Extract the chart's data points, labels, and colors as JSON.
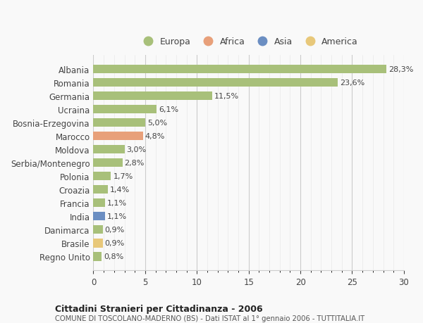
{
  "countries": [
    "Albania",
    "Romania",
    "Germania",
    "Ucraina",
    "Bosnia-Erzegovina",
    "Marocco",
    "Moldova",
    "Serbia/Montenegro",
    "Polonia",
    "Croazia",
    "Francia",
    "India",
    "Danimarca",
    "Brasile",
    "Regno Unito"
  ],
  "values": [
    28.3,
    23.6,
    11.5,
    6.1,
    5.0,
    4.8,
    3.0,
    2.8,
    1.7,
    1.4,
    1.1,
    1.1,
    0.9,
    0.9,
    0.8
  ],
  "labels": [
    "28,3%",
    "23,6%",
    "11,5%",
    "6,1%",
    "5,0%",
    "4,8%",
    "3,0%",
    "2,8%",
    "1,7%",
    "1,4%",
    "1,1%",
    "1,1%",
    "0,9%",
    "0,9%",
    "0,8%"
  ],
  "colors": [
    "#a8c07a",
    "#a8c07a",
    "#a8c07a",
    "#a8c07a",
    "#a8c07a",
    "#e8a07a",
    "#a8c07a",
    "#a8c07a",
    "#a8c07a",
    "#a8c07a",
    "#a8c07a",
    "#6b8ec2",
    "#a8c07a",
    "#e8c87a",
    "#a8c07a"
  ],
  "legend_labels": [
    "Europa",
    "Africa",
    "Asia",
    "America"
  ],
  "legend_colors": [
    "#a8c07a",
    "#e8a07a",
    "#6b8ec2",
    "#e8c87a"
  ],
  "title_bold": "Cittadini Stranieri per Cittadinanza - 2006",
  "subtitle": "COMUNE DI TOSCOLANO-MADERNO (BS) - Dati ISTAT al 1° gennaio 2006 - TUTTITALIA.IT",
  "xlim": [
    0,
    30
  ],
  "xticks": [
    0,
    5,
    10,
    15,
    20,
    25,
    30
  ],
  "background_color": "#f9f9f9",
  "bar_height": 0.65
}
